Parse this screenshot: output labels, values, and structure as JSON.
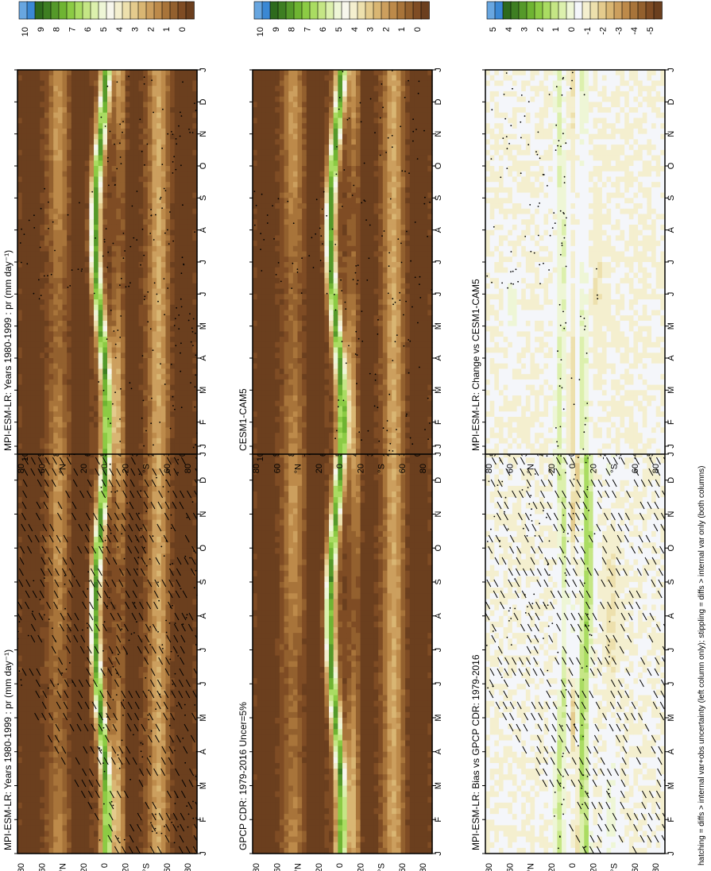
{
  "footnote": "hatching = diffs > internal var+obs uncertainty (left column only); stippling = diffs > internal var only (both columns)",
  "colors": {
    "precip": [
      "#6b3f1e",
      "#7f4c24",
      "#93602e",
      "#a8743a",
      "#bd8a4a",
      "#cc9f5e",
      "#d9b673",
      "#e4cb8d",
      "#ede0ad",
      "#f4efcf",
      "#f7f6ec",
      "#eef6d6",
      "#dcf0ad",
      "#c5e685",
      "#aadc62",
      "#8ccb44",
      "#6fb432",
      "#55992a",
      "#3e7e22",
      "#2e6a1c",
      "#3b88d4",
      "#68a6e0"
    ],
    "diff": [
      "#6b3f1e",
      "#7f4c24",
      "#93602e",
      "#a8743a",
      "#bd8a4a",
      "#cc9f5e",
      "#d9b673",
      "#e4cb8d",
      "#ede0ad",
      "#f4efcf",
      "#f4f6fa",
      "#eef6d6",
      "#dcf0ad",
      "#c5e685",
      "#aadc62",
      "#8ccb44",
      "#6fb432",
      "#55992a",
      "#3e7e22",
      "#2e6a1c",
      "#3b88d4",
      "#68a6e0"
    ]
  },
  "chart_data": [
    {
      "type": "heatmap",
      "panel": "top-left",
      "title": "MPI-ESM-LR: Years 1980-1999 : pr (mm day⁻¹)",
      "x": [
        "J",
        "F",
        "M",
        "A",
        "M",
        "J",
        "J",
        "A",
        "S",
        "O",
        "N",
        "D",
        "J"
      ],
      "y": [
        "80",
        "60",
        "°N",
        "20",
        "0",
        "20",
        "°S",
        "60",
        "80"
      ],
      "colorbar": [
        "10",
        "9",
        "8",
        "7",
        "6",
        "5",
        "4",
        "3",
        "2",
        "1",
        "0"
      ],
      "clim": [
        0,
        10
      ],
      "hatching": true,
      "stippling": true
    },
    {
      "type": "heatmap",
      "panel": "top-right",
      "title": "MPI-ESM-LR: Years 1980-1999 : pr (mm day⁻¹)",
      "x": [
        "J",
        "F",
        "M",
        "A",
        "M",
        "J",
        "J",
        "A",
        "S",
        "O",
        "N",
        "D",
        "J"
      ],
      "y": [
        "80",
        "60",
        "°N",
        "20",
        "0",
        "20",
        "°S",
        "60",
        "80"
      ],
      "colorbar": [
        "10",
        "9",
        "8",
        "7",
        "6",
        "5",
        "4",
        "3",
        "2",
        "1",
        "0"
      ],
      "clim": [
        0,
        10
      ],
      "hatching": false,
      "stippling": true
    },
    {
      "type": "heatmap",
      "panel": "middle-left",
      "title": "GPCP CDR: 1979-2016 Uncer=5%",
      "x": [
        "J",
        "F",
        "M",
        "A",
        "M",
        "J",
        "J",
        "A",
        "S",
        "O",
        "N",
        "D",
        "J"
      ],
      "y": [
        "80",
        "60",
        "°N",
        "20",
        "0",
        "20",
        "°S",
        "60",
        "80"
      ],
      "colorbar": [
        "10",
        "9",
        "8",
        "7",
        "6",
        "5",
        "4",
        "3",
        "2",
        "1",
        "0"
      ],
      "clim": [
        0,
        10
      ],
      "hatching": false,
      "stippling": false
    },
    {
      "type": "heatmap",
      "panel": "middle-right",
      "title": "CESM1-CAM5",
      "x": [
        "J",
        "F",
        "M",
        "A",
        "M",
        "J",
        "J",
        "A",
        "S",
        "O",
        "N",
        "D",
        "J"
      ],
      "y": [
        "80",
        "60",
        "°N",
        "20",
        "0",
        "20",
        "°S",
        "60",
        "80"
      ],
      "colorbar": [
        "10",
        "9",
        "8",
        "7",
        "6",
        "5",
        "4",
        "3",
        "2",
        "1",
        "0"
      ],
      "clim": [
        0,
        10
      ],
      "hatching": false,
      "stippling": true
    },
    {
      "type": "heatmap",
      "panel": "bottom-left",
      "title": "MPI-ESM-LR: Bias vs GPCP CDR: 1979-2016",
      "x": [
        "J",
        "F",
        "M",
        "A",
        "M",
        "J",
        "J",
        "A",
        "S",
        "O",
        "N",
        "D",
        "J"
      ],
      "y": [
        "80",
        "60",
        "°N",
        "20",
        "0",
        "20",
        "°S",
        "60",
        "80"
      ],
      "colorbar": [
        "5",
        "4",
        "3",
        "2",
        "1",
        "0",
        "-1",
        "-2",
        "-3",
        "-4",
        "-5"
      ],
      "clim": [
        -5,
        5
      ],
      "hatching": true,
      "stippling": true
    },
    {
      "type": "heatmap",
      "panel": "bottom-right",
      "title": "MPI-ESM-LR: Change vs CESM1-CAM5",
      "x": [
        "J",
        "F",
        "M",
        "A",
        "M",
        "J",
        "J",
        "A",
        "S",
        "O",
        "N",
        "D",
        "J"
      ],
      "y": [
        "80",
        "60",
        "°N",
        "20",
        "0",
        "20",
        "°S",
        "60",
        "80"
      ],
      "colorbar": [
        "5",
        "4",
        "3",
        "2",
        "1",
        "0",
        "-1",
        "-2",
        "-3",
        "-4",
        "-5"
      ],
      "clim": [
        -5,
        5
      ],
      "hatching": false,
      "stippling": true
    }
  ]
}
